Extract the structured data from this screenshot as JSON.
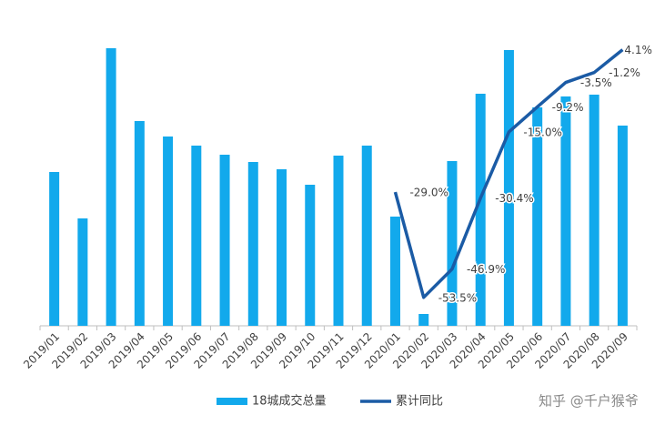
{
  "chart_data": {
    "type": "bar-line",
    "categories": [
      "2019/01",
      "2019/02",
      "2019/03",
      "2019/04",
      "2019/05",
      "2019/06",
      "2019/07",
      "2019/08",
      "2019/09",
      "2019/10",
      "2019/11",
      "2019/12",
      "2020/01",
      "2020/02",
      "2020/03",
      "2020/04",
      "2020/05",
      "2020/06",
      "2020/07",
      "2020/08",
      "2020/09"
    ],
    "series": [
      {
        "name": "18城成交总量",
        "type": "bar",
        "color": "#12a9ec",
        "values": [
          169,
          118,
          305,
          225,
          208,
          198,
          188,
          180,
          172,
          155,
          187,
          198,
          120,
          13,
          181,
          255,
          303,
          240,
          252,
          254,
          220
        ]
      },
      {
        "name": "累计同比",
        "type": "line",
        "axis": "y2",
        "color": "#1b5ba5",
        "values": [
          null,
          null,
          null,
          null,
          null,
          null,
          null,
          null,
          null,
          null,
          null,
          null,
          -29.0,
          -53.5,
          -46.9,
          -30.4,
          -15.0,
          -9.2,
          -3.5,
          -1.2,
          4.1
        ],
        "value_labels": [
          null,
          null,
          null,
          null,
          null,
          null,
          null,
          null,
          null,
          null,
          null,
          null,
          "-29.0%",
          "-53.5%",
          "-46.9%",
          "-30.4%",
          "-15.0%",
          "-9.2%",
          "-3.5%",
          "-1.2%",
          "4.1%"
        ]
      }
    ],
    "ylim": [
      0,
      318
    ],
    "y2lim": [
      -60.1,
      7.2
    ],
    "watermark": "知乎 @千户猴爷"
  }
}
